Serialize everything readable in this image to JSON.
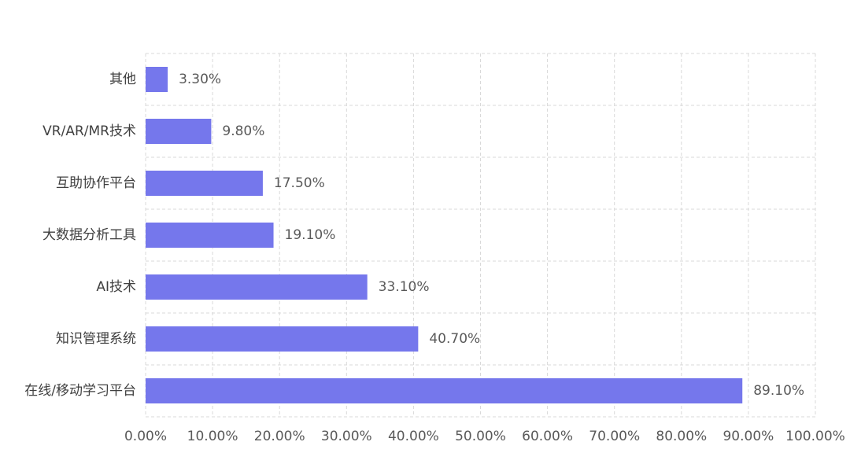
{
  "chart_data": {
    "type": "bar",
    "orientation": "horizontal",
    "categories": [
      "其他",
      "VR/AR/MR技术",
      "互助协作平台",
      "大数据分析工具",
      "AI技术",
      "知识管理系统",
      "在线/移动学习平台"
    ],
    "values": [
      3.3,
      9.8,
      17.5,
      19.1,
      33.1,
      40.7,
      89.1
    ],
    "value_labels": [
      "3.30%",
      "9.80%",
      "17.50%",
      "19.10%",
      "33.10%",
      "40.70%",
      "89.10%"
    ],
    "x_ticks": [
      0,
      10,
      20,
      30,
      40,
      50,
      60,
      70,
      80,
      90,
      100
    ],
    "x_tick_labels": [
      "0.00%",
      "10.00%",
      "20.00%",
      "30.00%",
      "40.00%",
      "50.00%",
      "60.00%",
      "70.00%",
      "80.00%",
      "90.00%",
      "100.00%"
    ],
    "xlim": [
      0,
      100
    ],
    "title": "",
    "xlabel": "",
    "ylabel": "",
    "grid": true,
    "grid_style": "dashed",
    "legend": false,
    "bar_color": "#7577EC",
    "grid_color": "#D9D9D9",
    "text_color": "#595959"
  }
}
